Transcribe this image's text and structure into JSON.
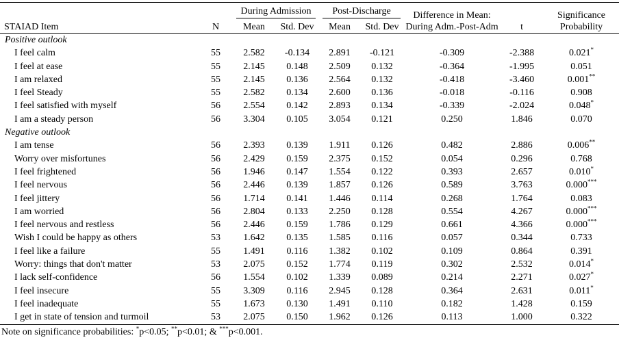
{
  "table": {
    "headers": {
      "item": "STAIAD Item",
      "n": "N",
      "during_admission": "During Admission",
      "post_discharge": "Post-Discharge",
      "during_mean": "Mean",
      "during_sd": "Std. Dev",
      "post_mean": "Mean",
      "post_sd": "Std. Dev",
      "difference_line1": "Difference in Mean:",
      "difference_line2": "During Adm.-Post-Adm",
      "t": "t",
      "significance_line1": "Significance",
      "significance_line2": "Probability"
    },
    "sections": [
      {
        "label": "Positive outlook",
        "rows": [
          {
            "item": "I feel calm",
            "n": "55",
            "adm_mean": "2.582",
            "adm_sd": "-0.134",
            "post_mean": "2.891",
            "post_sd": "-0.121",
            "diff": "-0.309",
            "t": "-2.388",
            "sig": "0.021",
            "stars": "*"
          },
          {
            "item": "I feel at ease",
            "n": "55",
            "adm_mean": "2.145",
            "adm_sd": "0.148",
            "post_mean": "2.509",
            "post_sd": "0.132",
            "diff": "-0.364",
            "t": "-1.995",
            "sig": "0.051",
            "stars": ""
          },
          {
            "item": "I am relaxed",
            "n": "55",
            "adm_mean": "2.145",
            "adm_sd": "0.136",
            "post_mean": "2.564",
            "post_sd": "0.132",
            "diff": "-0.418",
            "t": "-3.460",
            "sig": "0.001",
            "stars": "**"
          },
          {
            "item": "I feel Steady",
            "n": "55",
            "adm_mean": "2.582",
            "adm_sd": "0.134",
            "post_mean": "2.600",
            "post_sd": "0.136",
            "diff": "-0.018",
            "t": "-0.116",
            "sig": "0.908",
            "stars": ""
          },
          {
            "item": "I feel satisfied with myself",
            "n": "56",
            "adm_mean": "2.554",
            "adm_sd": "0.142",
            "post_mean": "2.893",
            "post_sd": "0.134",
            "diff": "-0.339",
            "t": "-2.024",
            "sig": "0.048",
            "stars": "*"
          },
          {
            "item": "I am a steady person",
            "n": "56",
            "adm_mean": "3.304",
            "adm_sd": "0.105",
            "post_mean": "3.054",
            "post_sd": "0.121",
            "diff": "0.250",
            "t": "1.846",
            "sig": "0.070",
            "stars": ""
          }
        ]
      },
      {
        "label": "Negative outlook",
        "rows": [
          {
            "item": "I am tense",
            "n": "56",
            "adm_mean": "2.393",
            "adm_sd": "0.139",
            "post_mean": "1.911",
            "post_sd": "0.126",
            "diff": "0.482",
            "t": "2.886",
            "sig": "0.006",
            "stars": "**"
          },
          {
            "item": "Worry over misfortunes",
            "n": "56",
            "adm_mean": "2.429",
            "adm_sd": "0.159",
            "post_mean": "2.375",
            "post_sd": "0.152",
            "diff": "0.054",
            "t": "0.296",
            "sig": "0.768",
            "stars": ""
          },
          {
            "item": "I feel frightened",
            "n": "56",
            "adm_mean": "1.946",
            "adm_sd": "0.147",
            "post_mean": "1.554",
            "post_sd": "0.122",
            "diff": "0.393",
            "t": "2.657",
            "sig": "0.010",
            "stars": "*"
          },
          {
            "item": "I feel nervous",
            "n": "56",
            "adm_mean": "2.446",
            "adm_sd": "0.139",
            "post_mean": "1.857",
            "post_sd": "0.126",
            "diff": "0.589",
            "t": "3.763",
            "sig": "0.000",
            "stars": "***"
          },
          {
            "item": "I feel jittery",
            "n": "56",
            "adm_mean": "1.714",
            "adm_sd": "0.141",
            "post_mean": "1.446",
            "post_sd": "0.114",
            "diff": "0.268",
            "t": "1.764",
            "sig": "0.083",
            "stars": ""
          },
          {
            "item": "I am worried",
            "n": "56",
            "adm_mean": "2.804",
            "adm_sd": "0.133",
            "post_mean": "2.250",
            "post_sd": "0.128",
            "diff": "0.554",
            "t": "4.267",
            "sig": "0.000",
            "stars": "***"
          },
          {
            "item": "I feel nervous and restless",
            "n": "56",
            "adm_mean": "2.446",
            "adm_sd": "0.159",
            "post_mean": "1.786",
            "post_sd": "0.129",
            "diff": "0.661",
            "t": "4.366",
            "sig": "0.000",
            "stars": "***"
          },
          {
            "item": "Wish I could be happy as others",
            "n": "53",
            "adm_mean": "1.642",
            "adm_sd": "0.135",
            "post_mean": "1.585",
            "post_sd": "0.116",
            "diff": "0.057",
            "t": "0.344",
            "sig": "0.733",
            "stars": ""
          },
          {
            "item": "I feel like a failure",
            "n": "55",
            "adm_mean": "1.491",
            "adm_sd": "0.116",
            "post_mean": "1.382",
            "post_sd": "0.102",
            "diff": "0.109",
            "t": "0.864",
            "sig": "0.391",
            "stars": ""
          },
          {
            "item": "Worry: things that don't matter",
            "n": "53",
            "adm_mean": "2.075",
            "adm_sd": "0.152",
            "post_mean": "1.774",
            "post_sd": "0.119",
            "diff": "0.302",
            "t": "2.532",
            "sig": "0.014",
            "stars": "*"
          },
          {
            "item": "I lack self-confidence",
            "n": "56",
            "adm_mean": "1.554",
            "adm_sd": "0.102",
            "post_mean": "1.339",
            "post_sd": "0.089",
            "diff": "0.214",
            "t": "2.271",
            "sig": "0.027",
            "stars": "*"
          },
          {
            "item": "I feel insecure",
            "n": "55",
            "adm_mean": "3.309",
            "adm_sd": "0.116",
            "post_mean": "2.945",
            "post_sd": "0.128",
            "diff": "0.364",
            "t": "2.631",
            "sig": "0.011",
            "stars": "*"
          },
          {
            "item": "I feel inadequate",
            "n": "55",
            "adm_mean": "1.673",
            "adm_sd": "0.130",
            "post_mean": "1.491",
            "post_sd": "0.110",
            "diff": "0.182",
            "t": "1.428",
            "sig": "0.159",
            "stars": ""
          },
          {
            "item": "I get in state of tension and turmoil",
            "n": "53",
            "adm_mean": "2.075",
            "adm_sd": "0.150",
            "post_mean": "1.962",
            "post_sd": "0.126",
            "diff": "0.113",
            "t": "1.000",
            "sig": "0.322",
            "stars": ""
          }
        ]
      }
    ],
    "note": {
      "prefix": "Note on significance probabilities: ",
      "p05_stars": "*",
      "p05": "p<0.05; ",
      "p01_stars": "**",
      "p01": "p<0.01; & ",
      "p001_stars": "***",
      "p001": "p<0.001."
    }
  }
}
